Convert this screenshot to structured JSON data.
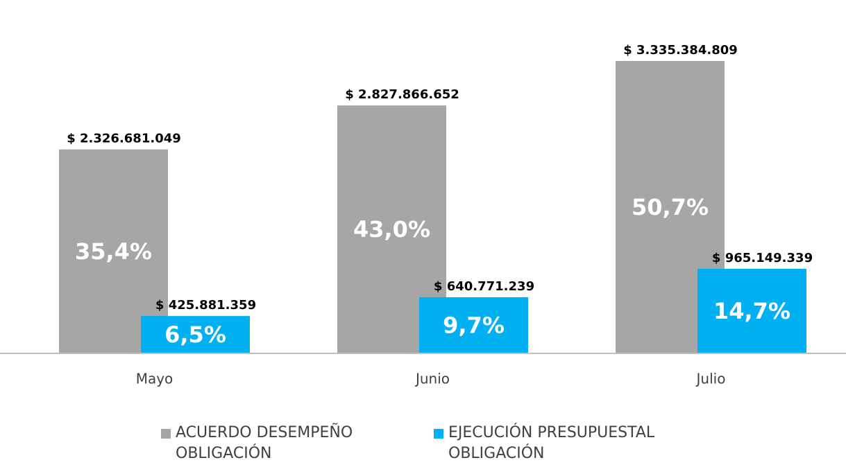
{
  "chart_data": {
    "type": "bar",
    "categories": [
      "Mayo",
      "Junio",
      "Julio"
    ],
    "series": [
      {
        "name": "ACUERDO DESEMPEÑO OBLIGACIÓN",
        "color": "#a6a6a6",
        "values": [
          2326681049,
          2827866652,
          3335384809
        ],
        "value_labels": [
          "$ 2.326.681.049",
          "$ 2.827.866.652",
          "$ 3.335.384.809"
        ],
        "percentages": [
          35.4,
          43.0,
          50.7
        ],
        "percentage_labels": [
          "35,4%",
          "43,0%",
          "50,7%"
        ]
      },
      {
        "name": "EJECUCIÓN PRESUPUESTAL OBLIGACIÓN",
        "color": "#00b0f0",
        "values": [
          425881359,
          640771239,
          965149339
        ],
        "value_labels": [
          "$ 425.881.359",
          "$ 640.771.239",
          "$ 965.149.339"
        ],
        "percentages": [
          6.5,
          9.7,
          14.7
        ],
        "percentage_labels": [
          "6,5%",
          "9,7%",
          "14,7%"
        ]
      }
    ],
    "legend": "bottom"
  }
}
